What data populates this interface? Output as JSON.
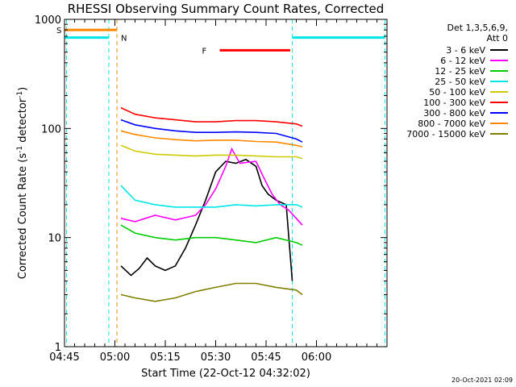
{
  "chart_data": {
    "type": "line",
    "title": "RHESSI Observing Summary Count Rates, Corrected",
    "xlabel": "Start Time (22-Oct-12 04:32:02)",
    "ylabel_main": "Corrected Count Rate (s",
    "ylabel_sup1": "-1",
    "ylabel_mid": " detector",
    "ylabel_sup2": "-1",
    "ylabel_end": ")",
    "ylabel": "Corrected Count Rate (s-1 detector-1)",
    "yscale": "log",
    "ylim": [
      1,
      1000
    ],
    "xlim_minutes": [
      4.75,
      6.35
    ],
    "x_ticks": [
      {
        "label": "04:45",
        "value": 4.75
      },
      {
        "label": "05:00",
        "value": 5.0
      },
      {
        "label": "05:15",
        "value": 5.25
      },
      {
        "label": "05:30",
        "value": 5.5
      },
      {
        "label": "05:45",
        "value": 5.75
      },
      {
        "label": "06:00",
        "value": 6.0
      }
    ],
    "y_ticks": [
      {
        "label": "1",
        "value": 1
      },
      {
        "label": "10",
        "value": 10
      },
      {
        "label": "100",
        "value": 100
      },
      {
        "label": "1000",
        "value": 1000
      }
    ],
    "grid": false,
    "legend_position": "right",
    "legend_header": [
      "Det 1,3,5,6,9,",
      "Att 0"
    ],
    "series": [
      {
        "name": "3 - 6 keV",
        "color": "#000000",
        "points": [
          [
            5.03,
            5.5
          ],
          [
            5.08,
            4.5
          ],
          [
            5.12,
            5.2
          ],
          [
            5.16,
            6.5
          ],
          [
            5.2,
            5.5
          ],
          [
            5.25,
            5.0
          ],
          [
            5.3,
            5.5
          ],
          [
            5.35,
            8
          ],
          [
            5.4,
            13
          ],
          [
            5.45,
            22
          ],
          [
            5.5,
            40
          ],
          [
            5.55,
            50
          ],
          [
            5.6,
            48
          ],
          [
            5.65,
            52
          ],
          [
            5.7,
            45
          ],
          [
            5.73,
            30
          ],
          [
            5.76,
            25
          ],
          [
            5.8,
            22
          ],
          [
            5.85,
            20
          ],
          [
            5.88,
            4
          ]
        ]
      },
      {
        "name": "6 - 12 keV",
        "color": "#ff00ff",
        "points": [
          [
            5.03,
            15
          ],
          [
            5.1,
            14
          ],
          [
            5.2,
            16
          ],
          [
            5.3,
            14.5
          ],
          [
            5.4,
            16
          ],
          [
            5.45,
            20
          ],
          [
            5.5,
            28
          ],
          [
            5.55,
            45
          ],
          [
            5.58,
            65
          ],
          [
            5.62,
            48
          ],
          [
            5.7,
            50
          ],
          [
            5.74,
            35
          ],
          [
            5.78,
            25
          ],
          [
            5.82,
            20
          ],
          [
            5.86,
            18
          ],
          [
            5.9,
            15
          ],
          [
            5.93,
            13
          ]
        ]
      },
      {
        "name": "12 - 25 keV",
        "color": "#00cc00",
        "points": [
          [
            5.03,
            13
          ],
          [
            5.1,
            11
          ],
          [
            5.2,
            10
          ],
          [
            5.3,
            9.5
          ],
          [
            5.4,
            10
          ],
          [
            5.5,
            10
          ],
          [
            5.6,
            9.5
          ],
          [
            5.7,
            9
          ],
          [
            5.8,
            10
          ],
          [
            5.9,
            9
          ],
          [
            5.93,
            8.5
          ]
        ]
      },
      {
        "name": "25 - 50 keV",
        "color": "#00e6e6",
        "points": [
          [
            5.03,
            30
          ],
          [
            5.1,
            22
          ],
          [
            5.2,
            20
          ],
          [
            5.3,
            19
          ],
          [
            5.4,
            19
          ],
          [
            5.5,
            19
          ],
          [
            5.6,
            20
          ],
          [
            5.7,
            19.5
          ],
          [
            5.8,
            20
          ],
          [
            5.9,
            20
          ],
          [
            5.93,
            19
          ]
        ]
      },
      {
        "name": "50 - 100 keV",
        "color": "#cccc00",
        "points": [
          [
            5.03,
            70
          ],
          [
            5.1,
            62
          ],
          [
            5.2,
            58
          ],
          [
            5.3,
            57
          ],
          [
            5.4,
            56
          ],
          [
            5.5,
            57
          ],
          [
            5.6,
            57
          ],
          [
            5.7,
            56
          ],
          [
            5.8,
            55
          ],
          [
            5.9,
            55
          ],
          [
            5.93,
            53
          ]
        ]
      },
      {
        "name": "100 - 300 keV",
        "color": "#ff0000",
        "points": [
          [
            5.03,
            155
          ],
          [
            5.1,
            135
          ],
          [
            5.2,
            125
          ],
          [
            5.3,
            120
          ],
          [
            5.4,
            115
          ],
          [
            5.5,
            115
          ],
          [
            5.6,
            118
          ],
          [
            5.7,
            118
          ],
          [
            5.8,
            115
          ],
          [
            5.9,
            110
          ],
          [
            5.93,
            105
          ]
        ]
      },
      {
        "name": "300 - 800 keV",
        "color": "#0000ff",
        "points": [
          [
            5.03,
            120
          ],
          [
            5.1,
            108
          ],
          [
            5.2,
            100
          ],
          [
            5.3,
            95
          ],
          [
            5.4,
            92
          ],
          [
            5.5,
            92
          ],
          [
            5.6,
            93
          ],
          [
            5.7,
            92
          ],
          [
            5.8,
            90
          ],
          [
            5.9,
            80
          ],
          [
            5.93,
            75
          ]
        ]
      },
      {
        "name": "800 - 7000 keV",
        "color": "#ff8800",
        "points": [
          [
            5.03,
            95
          ],
          [
            5.1,
            88
          ],
          [
            5.2,
            82
          ],
          [
            5.3,
            79
          ],
          [
            5.4,
            77
          ],
          [
            5.5,
            78
          ],
          [
            5.6,
            78
          ],
          [
            5.7,
            76
          ],
          [
            5.8,
            75
          ],
          [
            5.9,
            70
          ],
          [
            5.93,
            68
          ]
        ]
      },
      {
        "name": "7000 - 15000 keV",
        "color": "#808000",
        "points": [
          [
            5.03,
            3.0
          ],
          [
            5.1,
            2.8
          ],
          [
            5.2,
            2.6
          ],
          [
            5.3,
            2.8
          ],
          [
            5.4,
            3.2
          ],
          [
            5.5,
            3.5
          ],
          [
            5.6,
            3.8
          ],
          [
            5.7,
            3.8
          ],
          [
            5.8,
            3.5
          ],
          [
            5.9,
            3.3
          ],
          [
            5.93,
            3.0
          ]
        ]
      }
    ],
    "state_bars": [
      {
        "label": "S",
        "color": "#ff8800",
        "x_start": 4.75,
        "x_end": 5.01,
        "y": 800
      },
      {
        "label": "N",
        "color": "#00e6e6",
        "x_start": 4.75,
        "x_end": 4.97,
        "y": 680
      },
      {
        "label": "",
        "color": "#00e6e6",
        "x_start": 5.88,
        "x_end": 6.34,
        "y": 680
      },
      {
        "label": "F",
        "color": "#ff0000",
        "x_start": 5.52,
        "x_end": 5.87,
        "y": 520
      }
    ],
    "vertical_markers": [
      {
        "color": "#00e6e6",
        "x": 4.76
      },
      {
        "color": "#00e6e6",
        "x": 4.97
      },
      {
        "color": "#ff8800",
        "x": 5.01
      },
      {
        "color": "#00e6e6",
        "x": 5.88
      },
      {
        "color": "#00e6e6",
        "x": 6.34
      }
    ],
    "footer": "20-Oct-2021 02:09"
  }
}
